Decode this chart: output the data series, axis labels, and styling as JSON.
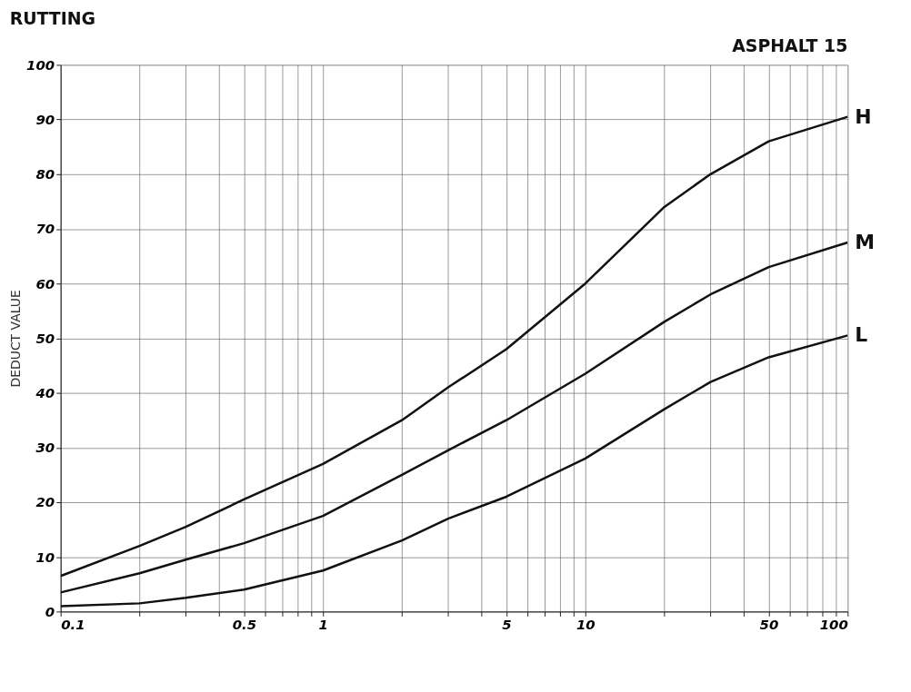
{
  "chart_data": {
    "type": "line",
    "title": "RUTTING",
    "annotations": [
      "ASPHALT 15"
    ],
    "ylabel": "DEDUCT VALUE",
    "log": "x",
    "grid": true,
    "legend": false,
    "marker": "none",
    "line_style": "solid",
    "x": [
      0.1,
      0.2,
      0.3,
      0.5,
      1,
      2,
      3,
      5,
      10,
      20,
      30,
      50,
      100
    ],
    "xlim": [
      0.1,
      100
    ],
    "xticks": [
      0.1,
      {
        "value": 0.2,
        "label": null
      },
      {
        "value": 0.3,
        "label": null
      },
      {
        "value": 0.4,
        "label": null
      },
      0.5,
      {
        "value": 0.6,
        "label": null
      },
      {
        "value": 0.7,
        "label": null
      },
      {
        "value": 0.8,
        "label": null
      },
      {
        "value": 0.9,
        "label": null
      },
      1,
      {
        "value": 2,
        "label": null
      },
      {
        "value": 3,
        "label": null
      },
      {
        "value": 4,
        "label": null
      },
      5,
      {
        "value": 6,
        "label": null
      },
      {
        "value": 7,
        "label": null
      },
      {
        "value": 8,
        "label": null
      },
      {
        "value": 9,
        "label": null
      },
      10,
      {
        "value": 20,
        "label": null
      },
      {
        "value": 30,
        "label": null
      },
      {
        "value": 40,
        "label": null
      },
      50,
      {
        "value": 60,
        "label": null
      },
      {
        "value": 70,
        "label": null
      },
      {
        "value": 80,
        "label": null
      },
      {
        "value": 90,
        "label": null
      },
      100
    ],
    "ylim": [
      0,
      100
    ],
    "yticks": [
      0,
      10,
      20,
      30,
      40,
      50,
      60,
      70,
      80,
      90,
      100
    ],
    "series": [
      {
        "name": "H",
        "color": "#111111",
        "values": [
          6.5,
          12,
          15.5,
          20.5,
          27,
          35,
          41,
          48,
          60,
          74,
          80,
          86,
          90.5
        ]
      },
      {
        "name": "M",
        "color": "#111111",
        "values": [
          3.5,
          7,
          9.5,
          12.5,
          17.5,
          25,
          29.5,
          35,
          43.5,
          53,
          58,
          63,
          67.5
        ]
      },
      {
        "name": "L",
        "color": "#111111",
        "values": [
          1,
          1.5,
          2.5,
          4,
          7.5,
          13,
          17,
          21,
          28,
          37,
          42,
          46.5,
          50.5
        ]
      }
    ]
  }
}
